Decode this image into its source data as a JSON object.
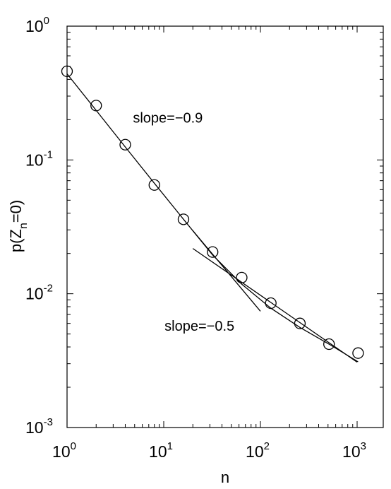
{
  "chart_data": {
    "type": "scatter",
    "title": "",
    "xlabel": "n",
    "ylabel": {
      "main": "p(Z",
      "sub": "n",
      "tail": "=0)"
    },
    "xscale": "log",
    "yscale": "log",
    "xlim": [
      1,
      1000
    ],
    "ylim": [
      0.001,
      1
    ],
    "grid": false,
    "x_ticks": [
      {
        "base": "10",
        "exp": "0",
        "value": 1
      },
      {
        "base": "10",
        "exp": "1",
        "value": 10
      },
      {
        "base": "10",
        "exp": "2",
        "value": 100
      },
      {
        "base": "10",
        "exp": "3",
        "value": 1000
      }
    ],
    "y_ticks": [
      {
        "base": "10",
        "exp": "0",
        "value": 1
      },
      {
        "base": "10",
        "exp": "-1",
        "value": 0.1
      },
      {
        "base": "10",
        "exp": "-2",
        "value": 0.01
      },
      {
        "base": "10",
        "exp": "-3",
        "value": 0.001
      }
    ],
    "series": [
      {
        "marker": "open-circle",
        "x": [
          1,
          2,
          4,
          8,
          16,
          32,
          64,
          128,
          256,
          512,
          1024
        ],
        "y": [
          0.46,
          0.255,
          0.13,
          0.065,
          0.036,
          0.0205,
          0.0132,
          0.0085,
          0.006,
          0.0042,
          0.0036
        ]
      },
      {
        "marker": "none",
        "x": [
          1,
          2,
          4,
          8,
          16,
          32,
          64,
          128,
          256,
          512,
          1024
        ],
        "y": [
          0.44,
          0.235,
          0.125,
          0.067,
          0.036,
          0.0195,
          0.0118,
          0.0078,
          0.0056,
          0.0042,
          0.0031
        ]
      },
      {
        "marker": "none",
        "x": [
          20,
          100
        ],
        "y": [
          0.0296,
          0.0074
        ]
      },
      {
        "marker": "none",
        "x": [
          20,
          1000
        ],
        "y": [
          0.0218,
          0.00308
        ]
      }
    ],
    "annotations": [
      {
        "text": "slope=−0.9",
        "x": 4.8,
        "y": 0.19
      },
      {
        "text": "slope=−0.5",
        "x": 10.2,
        "y": 0.0053
      }
    ],
    "colors": {
      "line": "#000000",
      "background": "#ffffff"
    }
  }
}
